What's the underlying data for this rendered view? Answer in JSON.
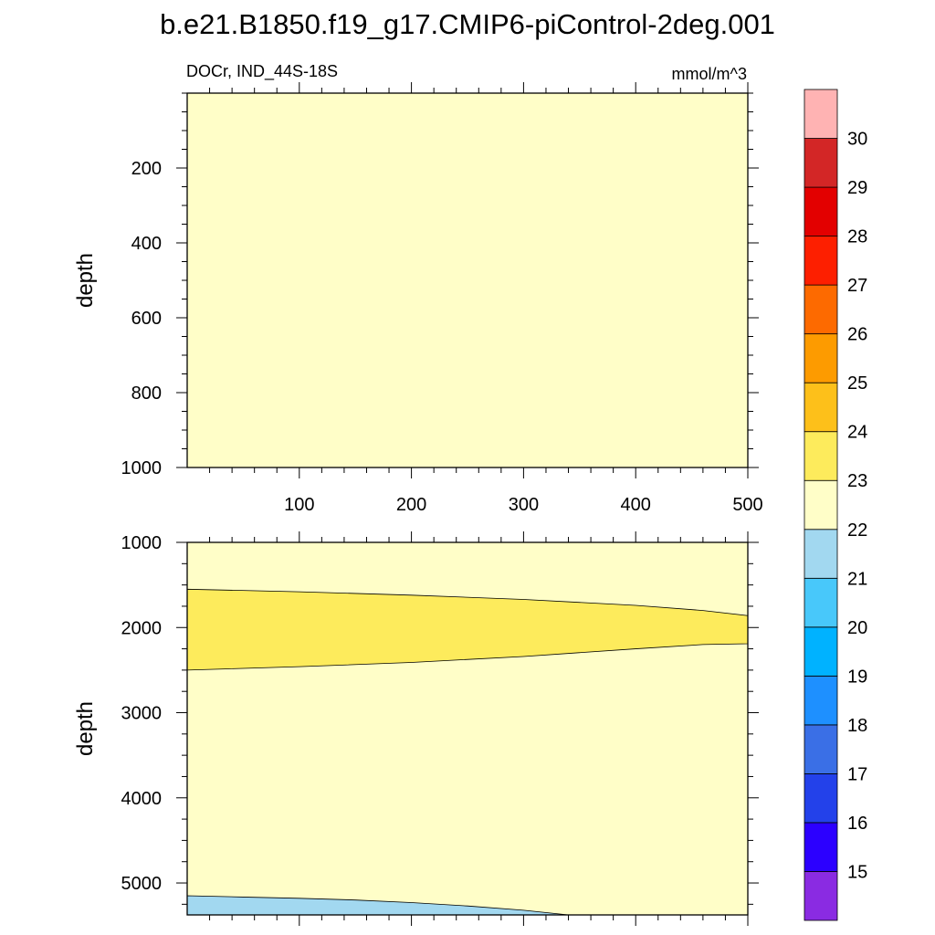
{
  "chart_data": {
    "type": "filled-contour",
    "title": "b.e21.B1850.f19_g17.CMIP6-piControl-2deg.001",
    "variable_label": "DOCr, IND_44S-18S",
    "units_label": "mmol/m^3",
    "x": {
      "range": [
        0,
        500
      ],
      "ticks": [
        100,
        200,
        300,
        400,
        500
      ],
      "tick_labels": [
        "100",
        "200",
        "300",
        "400",
        "500"
      ]
    },
    "panels": [
      {
        "name": "upper",
        "ylabel": "depth",
        "ylim": [
          0,
          1000
        ],
        "yticks": [
          200,
          400,
          600,
          800,
          1000
        ],
        "ytick_labels": [
          "200",
          "400",
          "600",
          "800",
          "1000"
        ],
        "background_level": "22-23",
        "regions": []
      },
      {
        "name": "lower",
        "ylabel": "depth",
        "ylim": [
          1000,
          5375
        ],
        "yticks": [
          1000,
          2000,
          3000,
          4000,
          5000
        ],
        "ytick_labels": [
          "1000",
          "2000",
          "3000",
          "4000",
          "5000"
        ],
        "background_level": "22-23",
        "regions": [
          {
            "level": "23-24",
            "top": {
              "x": [
                0,
                100,
                200,
                300,
                400,
                460,
                500
              ],
              "depth": [
                1550,
                1580,
                1620,
                1670,
                1740,
                1800,
                1860
              ]
            },
            "bottom": {
              "x": [
                0,
                100,
                200,
                300,
                400,
                460,
                500
              ],
              "depth": [
                2500,
                2460,
                2410,
                2340,
                2250,
                2200,
                2190
              ]
            }
          },
          {
            "level": "21-22",
            "top": {
              "x": [
                0,
                50,
                100,
                150,
                200,
                250,
                300,
                340
              ],
              "depth": [
                5150,
                5165,
                5180,
                5200,
                5230,
                5270,
                5320,
                5375
              ]
            },
            "bottom_depth": 5375
          }
        ]
      }
    ],
    "colorbar": {
      "levels": [
        15,
        16,
        17,
        18,
        19,
        20,
        21,
        22,
        23,
        24,
        25,
        26,
        27,
        28,
        29,
        30
      ],
      "labels": [
        "15",
        "16",
        "17",
        "18",
        "19",
        "20",
        "21",
        "22",
        "23",
        "24",
        "25",
        "26",
        "27",
        "28",
        "29",
        "30"
      ],
      "colors": [
        "#8a2be2",
        "#2c00ff",
        "#2341ea",
        "#3a6fe6",
        "#1e90ff",
        "#00b2ff",
        "#48c8fa",
        "#a2d8f0",
        "#fffec8",
        "#fdeb5c",
        "#fdc01a",
        "#fd9b00",
        "#fd6a00",
        "#fd1f00",
        "#e30000",
        "#d32626",
        "#ffb3b3"
      ]
    }
  }
}
